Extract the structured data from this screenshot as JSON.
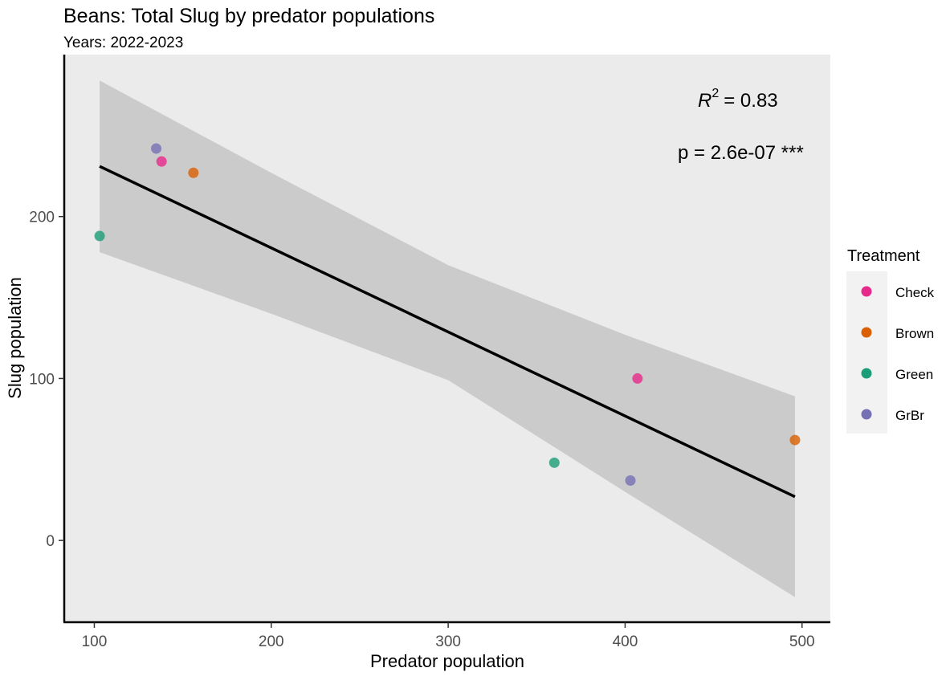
{
  "chart_data": {
    "type": "scatter",
    "title": "Beans: Total Slug by predator populations",
    "subtitle": "Years: 2022-2023",
    "xlabel": "Predator population",
    "ylabel": "Slug population",
    "xlim": [
      83,
      516
    ],
    "ylim": [
      -50,
      300
    ],
    "x_ticks": [
      100,
      200,
      300,
      400,
      500
    ],
    "y_ticks": [
      0,
      100,
      200
    ],
    "grid": false,
    "legend": {
      "title": "Treatment",
      "placement": "right",
      "entries": [
        {
          "name": "Check",
          "color": "#E7298A"
        },
        {
          "name": "Brown",
          "color": "#D95F02"
        },
        {
          "name": "Green",
          "color": "#1B9E77"
        },
        {
          "name": "GrBr",
          "color": "#7570B3"
        }
      ]
    },
    "series": [
      {
        "name": "Check",
        "color": "#E7298A",
        "points": [
          [
            138,
            234
          ],
          [
            407,
            100
          ]
        ]
      },
      {
        "name": "Brown",
        "color": "#D95F02",
        "points": [
          [
            156,
            227
          ],
          [
            496,
            62
          ]
        ]
      },
      {
        "name": "Green",
        "color": "#1B9E77",
        "points": [
          [
            103,
            188
          ],
          [
            360,
            48
          ]
        ]
      },
      {
        "name": "GrBr",
        "color": "#7570B3",
        "points": [
          [
            135,
            242
          ],
          [
            403,
            37
          ]
        ]
      }
    ],
    "regression": {
      "x_range": [
        103,
        496
      ],
      "line": [
        [
          103,
          231
        ],
        [
          496,
          27
        ]
      ],
      "ci_upper": [
        [
          103,
          284
        ],
        [
          200,
          227
        ],
        [
          300,
          170
        ],
        [
          400,
          127
        ],
        [
          496,
          89
        ]
      ],
      "ci_lower": [
        [
          103,
          178
        ],
        [
          200,
          140
        ],
        [
          300,
          99
        ],
        [
          400,
          30
        ],
        [
          496,
          -35
        ]
      ],
      "r2_label": "= 0.83",
      "r2_symbol": "R",
      "r2_power": "2",
      "p_label": "p = 2.6e-07 ***"
    },
    "colors": {
      "panel_bg": "#EBEBEB",
      "ci_fill": "#CBCBCB",
      "line": "#000000"
    }
  }
}
